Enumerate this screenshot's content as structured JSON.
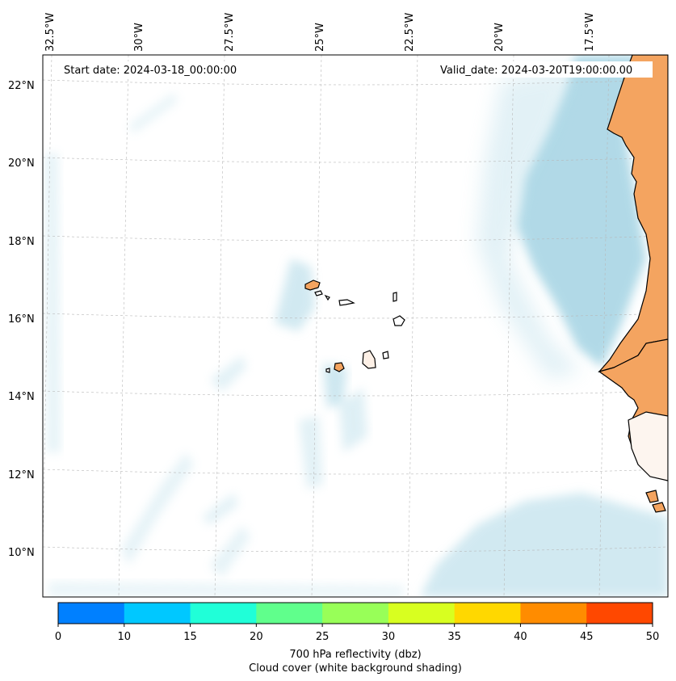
{
  "start_date_text": "Start date: 2024-03-18_00:00:00",
  "valid_date_text": "Valid_date: 2024-03-20T19:00:00.00",
  "lon_labels": [
    "32.5°W",
    "30°W",
    "27.5°W",
    "25°W",
    "22.5°W",
    "20°W",
    "17.5°W"
  ],
  "lat_labels": [
    "22°N",
    "20°N",
    "18°N",
    "16°N",
    "14°N",
    "12°N",
    "10°N"
  ],
  "colorbar": {
    "ticks": [
      "0",
      "10",
      "15",
      "20",
      "25",
      "30",
      "35",
      "40",
      "45",
      "50"
    ],
    "colors": [
      "#0080ff",
      "#00c8ff",
      "#20ffd8",
      "#60ff8c",
      "#98ff58",
      "#d8ff20",
      "#ffd800",
      "#ff8c00",
      "#ff4800"
    ],
    "title_line1": "700 hPa reflectivity (dbz)",
    "title_line2": "Cloud cover (white background shading)"
  },
  "colors": {
    "land": "#f4a460",
    "cloud": "#add8e6",
    "coast": "#000000"
  }
}
